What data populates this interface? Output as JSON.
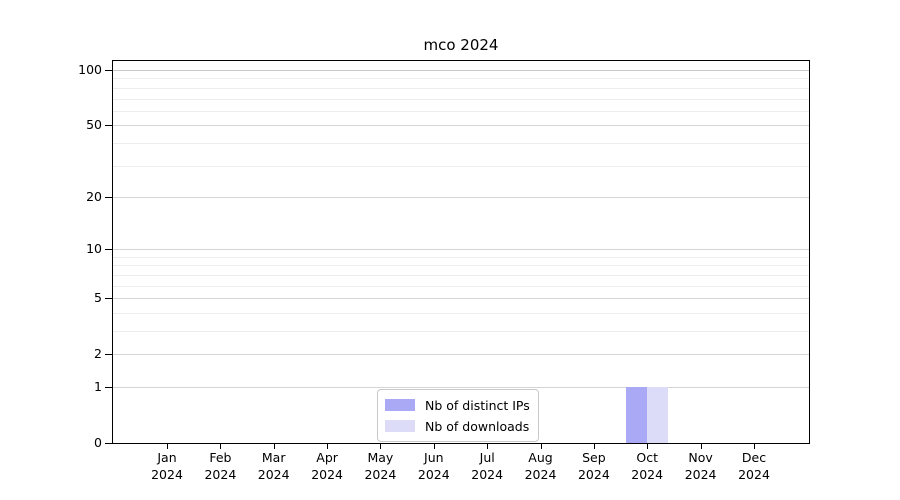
{
  "chart": {
    "title": "mco 2024"
  },
  "chart_data": {
    "type": "bar",
    "title": "mco 2024",
    "categories": [
      "Jan 2024",
      "Feb 2024",
      "Mar 2024",
      "Apr 2024",
      "May 2024",
      "Jun 2024",
      "Jul 2024",
      "Aug 2024",
      "Sep 2024",
      "Oct 2024",
      "Nov 2024",
      "Dec 2024"
    ],
    "series": [
      {
        "name": "Nb of distinct IPs",
        "color": "#a9a9f5",
        "values": [
          0,
          0,
          0,
          0,
          0,
          0,
          0,
          0,
          0,
          1,
          0,
          0
        ]
      },
      {
        "name": "Nb of downloads",
        "color": "#dcdcf8",
        "values": [
          0,
          0,
          0,
          0,
          0,
          0,
          0,
          0,
          0,
          1,
          0,
          0
        ]
      }
    ],
    "xlabel": "",
    "ylabel": "",
    "yscale": "log1p",
    "ylim": [
      0,
      113
    ],
    "y_major_ticks": [
      0,
      1,
      2,
      5,
      10,
      20,
      50,
      100
    ],
    "y_minor_gridlines": [
      3,
      4,
      6,
      7,
      8,
      9,
      30,
      40,
      60,
      70,
      80,
      90
    ],
    "grid": "horizontal",
    "legend_position": "bottom-center-inside",
    "colors": {
      "bar_distinct_ips": "#a9a9f5",
      "bar_downloads": "#dcdcf8",
      "major_grid": "#d4d4d4",
      "minor_grid": "#ededed",
      "top_grid": "#c8c8c8",
      "axis": "#000000",
      "legend_border": "#c9c9c9",
      "text": "#000000",
      "background": "#ffffff"
    }
  }
}
